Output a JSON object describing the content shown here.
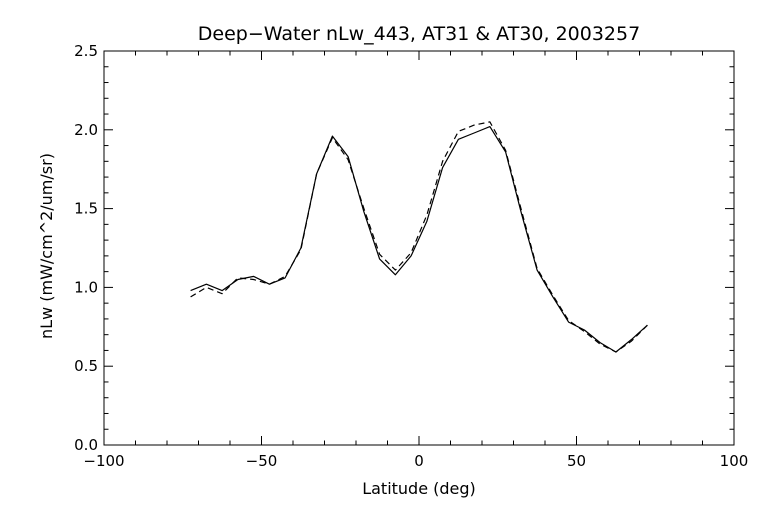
{
  "chart_data": {
    "type": "line",
    "title": "Deep−Water nLw_443, AT31 & AT30, 2003257",
    "xlabel": "Latitude (deg)",
    "ylabel": "nLw (mW/cm^2/um/sr)",
    "xlim": [
      -100,
      100
    ],
    "ylim": [
      0.0,
      2.5
    ],
    "xticks": [
      -100,
      -50,
      0,
      50,
      100
    ],
    "xtick_labels": [
      "−100",
      "−50",
      "0",
      "50",
      "100"
    ],
    "yticks": [
      0.0,
      0.5,
      1.0,
      1.5,
      2.0,
      2.5
    ],
    "ytick_labels": [
      "0.0",
      "0.5",
      "1.0",
      "1.5",
      "2.0",
      "2.5"
    ],
    "grid": false,
    "series": [
      {
        "style": "solid",
        "x": [
          -72.5,
          -67.5,
          -62.5,
          -57.5,
          -52.5,
          -47.5,
          -42.5,
          -37.5,
          -32.5,
          -27.5,
          -22.5,
          -17.5,
          -12.5,
          -7.5,
          -2.5,
          2.5,
          7.5,
          12.5,
          17.5,
          22.5,
          27.5,
          32.5,
          37.5,
          42.5,
          47.5,
          52.5,
          57.5,
          62.5,
          67.5,
          72.5
        ],
        "y": [
          0.98,
          1.02,
          0.98,
          1.05,
          1.07,
          1.02,
          1.06,
          1.25,
          1.72,
          1.96,
          1.83,
          1.48,
          1.18,
          1.08,
          1.2,
          1.42,
          1.76,
          1.94,
          1.98,
          2.02,
          1.86,
          1.47,
          1.11,
          0.94,
          0.78,
          0.73,
          0.65,
          0.59,
          0.67,
          0.76
        ]
      },
      {
        "style": "dashed",
        "x": [
          -72.5,
          -67.5,
          -62.5,
          -57.5,
          -52.5,
          -47.5,
          -42.5,
          -37.5,
          -32.5,
          -27.5,
          -22.5,
          -17.5,
          -12.5,
          -7.5,
          -2.5,
          2.5,
          7.5,
          12.5,
          17.5,
          22.5,
          27.5,
          32.5,
          37.5,
          42.5,
          47.5,
          52.5,
          57.5,
          62.5,
          67.5,
          72.5
        ],
        "y": [
          0.94,
          1.0,
          0.96,
          1.06,
          1.05,
          1.02,
          1.07,
          1.24,
          1.72,
          1.95,
          1.81,
          1.5,
          1.21,
          1.11,
          1.22,
          1.46,
          1.8,
          1.99,
          2.03,
          2.05,
          1.87,
          1.49,
          1.12,
          0.95,
          0.79,
          0.72,
          0.64,
          0.59,
          0.66,
          0.76
        ]
      }
    ]
  }
}
